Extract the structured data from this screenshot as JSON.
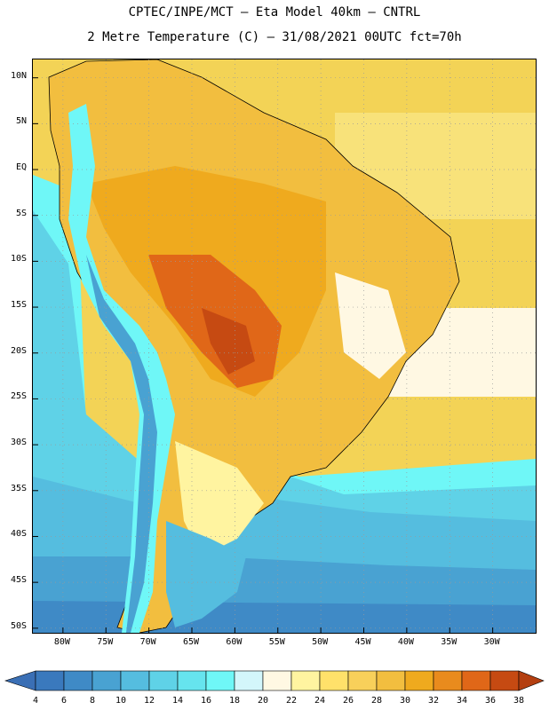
{
  "title": {
    "line1": "CPTEC/INPE/MCT –  Eta Model 40km – CNTRL",
    "line2": "2 Metre Temperature (C) – 31/08/2021 00UTC fct=70h"
  },
  "map": {
    "lat_labels": [
      "10N",
      "5N",
      "EQ",
      "5S",
      "10S",
      "15S",
      "20S",
      "25S",
      "30S",
      "35S",
      "40S",
      "45S",
      "50S"
    ],
    "lon_labels": [
      "80W",
      "75W",
      "70W",
      "65W",
      "60W",
      "55W",
      "50W",
      "45W",
      "40W",
      "35W",
      "30W"
    ],
    "lat_range": [
      -50.5,
      12
    ],
    "lon_range": [
      -83.5,
      -25
    ]
  },
  "colorbar": {
    "ticks": [
      "4",
      "6",
      "8",
      "10",
      "12",
      "14",
      "16",
      "18",
      "20",
      "22",
      "24",
      "26",
      "28",
      "30",
      "32",
      "34",
      "36",
      "38"
    ],
    "colors": [
      "#3a79bd",
      "#3f8ac6",
      "#49a2d2",
      "#55bddf",
      "#5fd2e7",
      "#66e4ee",
      "#6ff7f7",
      "#d3f6fb",
      "#fff8e3",
      "#fff4a0",
      "#ffe16a",
      "#f8d05a",
      "#f2be3f",
      "#efaa1e",
      "#e98b1d",
      "#e06718",
      "#c64a12"
    ],
    "under_color": "#3a6fb5",
    "over_color": "#b43f10"
  }
}
